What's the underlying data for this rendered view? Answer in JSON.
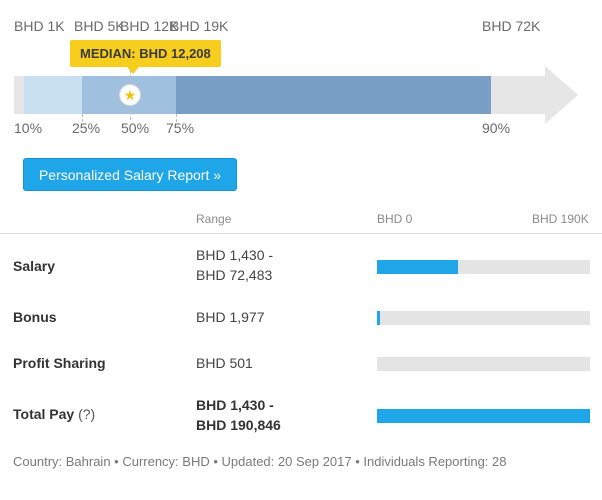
{
  "distribution": {
    "top_labels": [
      "BHD 1K",
      "BHD 5K",
      "BHD 12K",
      "BHD 19K",
      "BHD 72K"
    ],
    "percentile_labels": [
      "10%",
      "25%",
      "50%",
      "75%",
      "90%"
    ],
    "median_label": "MEDIAN: BHD 12,208",
    "bands": [
      {
        "from": 10,
        "to": 25,
        "color": "#c9e0f1"
      },
      {
        "from": 25,
        "to": 75,
        "color": "#9fc0de"
      },
      {
        "from": 75,
        "to": 90,
        "color": "#799fc5"
      }
    ],
    "track_color": "#e6e6e6",
    "median_star_icon": "star-icon"
  },
  "report_button": {
    "label": "Personalized Salary Report »"
  },
  "table": {
    "headers": {
      "range": "Range",
      "bar_min": "BHD 0",
      "bar_max": "BHD 190K"
    },
    "rows": [
      {
        "label": "Salary",
        "range_line1": "BHD 1,430 -",
        "range_line2": "BHD 72,483",
        "fill": 0.38
      },
      {
        "label": "Bonus",
        "range_line1": "BHD 1,977",
        "range_line2": "",
        "fill": 0.01
      },
      {
        "label": "Profit Sharing",
        "range_line1": "BHD 501",
        "range_line2": "",
        "fill": 0.0
      },
      {
        "label": "Total Pay",
        "label_suffix": "(?)",
        "range_line1": "BHD 1,430 -",
        "range_line2": "BHD 190,846",
        "fill": 1.0
      }
    ],
    "bar_color": "#1fa6e8"
  },
  "footer": {
    "text": "Country: Bahrain • Currency: BHD • Updated: 20 Sep 2017 • Individuals Reporting: 28"
  }
}
